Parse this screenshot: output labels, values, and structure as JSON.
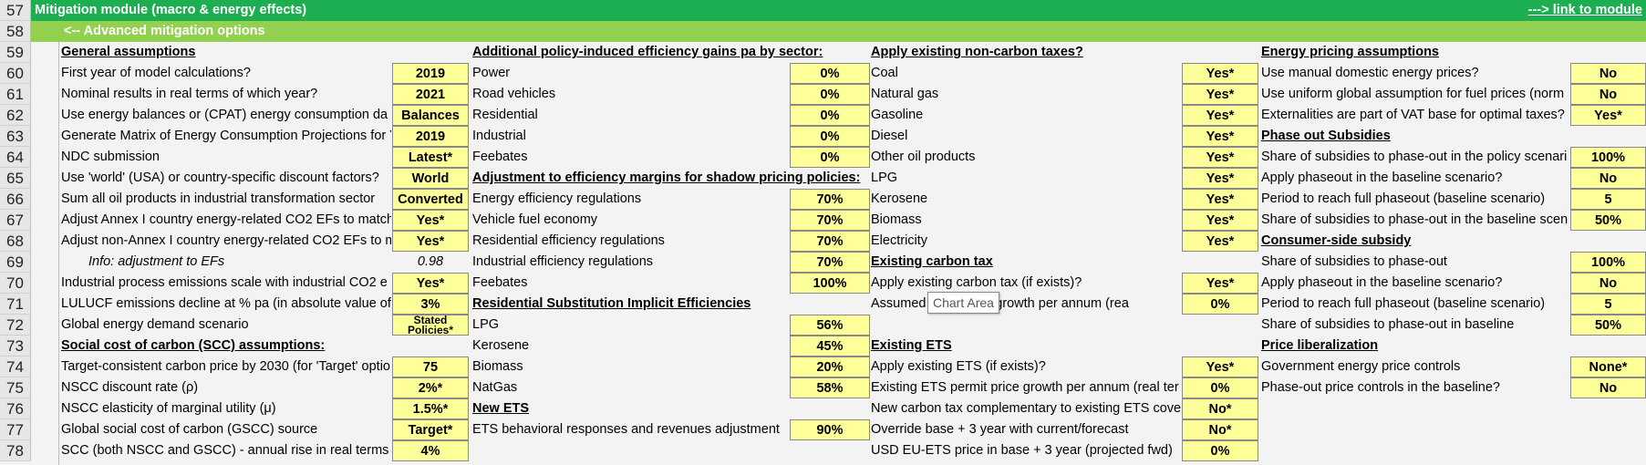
{
  "rows": [
    "57",
    "58",
    "59",
    "60",
    "61",
    "62",
    "63",
    "64",
    "65",
    "66",
    "67",
    "68",
    "69",
    "70",
    "71",
    "72",
    "73",
    "74",
    "75",
    "76",
    "77",
    "78"
  ],
  "banner": {
    "title": "Mitigation module (macro & energy effects)",
    "link": "---> link to module",
    "subtitle": "<-- Advanced mitigation options"
  },
  "col1": {
    "header": "General assumptions",
    "items": [
      {
        "label": "First year of model calculations?",
        "value": "2019"
      },
      {
        "label": "Nominal results in real terms of which year?",
        "value": "2021"
      },
      {
        "label": "Use energy balances or (CPAT) energy consumption da",
        "value": "Balances"
      },
      {
        "label": "Generate Matrix of Energy Consumption Projections for Y",
        "value": "2019"
      },
      {
        "label": "NDC submission",
        "value": "Latest*"
      },
      {
        "label": "Use 'world' (USA) or country-specific discount factors?",
        "value": "World"
      },
      {
        "label": "Sum all oil products in industrial transformation sector",
        "value": "Converted"
      },
      {
        "label": "Adjust Annex I country energy-related CO2 EFs to match",
        "value": "Yes*"
      },
      {
        "label": "Adjust non-Annex I country energy-related CO2 EFs to m",
        "value": "Yes*"
      },
      {
        "label": "Info: adjustment to EFs",
        "value": "0.98",
        "info": true
      },
      {
        "label": "Industrial process emissions scale with industrial CO2 e",
        "value": "Yes*"
      },
      {
        "label": "LULUCF emissions decline at % pa (in absolute value of",
        "value": "3%"
      },
      {
        "label": "Global energy demand scenario",
        "value": "Stated Policies*"
      }
    ],
    "header2": "Social cost of carbon (SCC) assumptions:",
    "items2": [
      {
        "label": "Target-consistent carbon price by 2030 (for 'Target' optio",
        "value": "75"
      },
      {
        "label": "NSCC discount rate (ρ)",
        "value": "2%*"
      },
      {
        "label": "NSCC elasticity of marginal utility (μ)",
        "value": "1.5%*"
      },
      {
        "label": "Global social cost of carbon (GSCC) source",
        "value": "Target*"
      },
      {
        "label": "SCC (both NSCC and GSCC) - annual rise in real terms",
        "value": "4%"
      }
    ]
  },
  "col2": {
    "header": "Additional policy-induced efficiency gains pa by sector:",
    "items": [
      {
        "label": "Power",
        "value": "0%"
      },
      {
        "label": "Road vehicles",
        "value": "0%"
      },
      {
        "label": "Residential",
        "value": "0%"
      },
      {
        "label": "Industrial",
        "value": "0%"
      },
      {
        "label": "Feebates",
        "value": "0%"
      }
    ],
    "header2": "Adjustment to efficiency margins for shadow pricing policies:",
    "items2": [
      {
        "label": "Energy efficiency regulations",
        "value": "70%"
      },
      {
        "label": "Vehicle fuel economy",
        "value": "70%"
      },
      {
        "label": "Residential efficiency regulations",
        "value": "70%"
      },
      {
        "label": "Industrial efficiency regulations",
        "value": "70%"
      },
      {
        "label": "Feebates",
        "value": "100%"
      }
    ],
    "header3": "Residential Substitution Implicit Efficiencies",
    "items3": [
      {
        "label": "LPG",
        "value": "56%"
      },
      {
        "label": "Kerosene",
        "value": "45%"
      },
      {
        "label": "Biomass",
        "value": "20%"
      },
      {
        "label": "NatGas",
        "value": "58%"
      }
    ],
    "header4": "New ETS",
    "items4": [
      {
        "label": "ETS behavioral responses and revenues adjustment",
        "value": "90%"
      }
    ]
  },
  "col3": {
    "header": "Apply existing non-carbon taxes?",
    "items": [
      {
        "label": "Coal",
        "value": "Yes*"
      },
      {
        "label": "Natural gas",
        "value": "Yes*"
      },
      {
        "label": "Gasoline",
        "value": "Yes*"
      },
      {
        "label": "Diesel",
        "value": "Yes*"
      },
      {
        "label": "Other oil products",
        "value": "Yes*"
      },
      {
        "label": "LPG",
        "value": "Yes*"
      },
      {
        "label": "Kerosene",
        "value": "Yes*"
      },
      {
        "label": "Biomass",
        "value": "Yes*"
      },
      {
        "label": "Electricity",
        "value": "Yes*"
      }
    ],
    "header2": "Existing carbon tax",
    "items2": [
      {
        "label": "Apply existing carbon tax (if exists)?",
        "value": "Yes*"
      },
      {
        "label": "Assumed carbon tax growth per annum (rea",
        "value": "0%"
      }
    ],
    "header3": "Existing ETS",
    "items3": [
      {
        "label": "Apply existing ETS (if exists)?",
        "value": "Yes*"
      },
      {
        "label": "Existing ETS permit price growth per annum (real ter",
        "value": "0%"
      },
      {
        "label": "New carbon tax complementary to existing ETS cove",
        "value": "No*"
      },
      {
        "label": "Override base + 3 year with current/forecast",
        "value": "No*"
      },
      {
        "label": "USD EU-ETS price in base + 3 year (projected fwd)",
        "value": "0%"
      }
    ]
  },
  "col4": {
    "header": "Energy pricing assumptions",
    "items": [
      {
        "label": "Use manual domestic energy prices?",
        "value": "No"
      },
      {
        "label": "Use uniform global assumption for fuel prices (norm",
        "value": "No"
      },
      {
        "label": "Externalities are part of VAT base for optimal taxes?",
        "value": "Yes*"
      }
    ],
    "header2": "Phase out Subsidies",
    "items2": [
      {
        "label": "Share of subsidies to phase-out in the policy scenari",
        "value": "100%"
      },
      {
        "label": "Apply phaseout in the baseline scenario?",
        "value": "No"
      },
      {
        "label": "Period to reach full phaseout (baseline scenario)",
        "value": "5"
      },
      {
        "label": "Share of subsidies to phase-out in the baseline scen",
        "value": "50%"
      }
    ],
    "header3": "Consumer-side subsidy",
    "items3": [
      {
        "label": "Share of subsidies to phase-out",
        "value": "100%"
      },
      {
        "label": "Apply phaseout in the baseline scenario?",
        "value": "No"
      },
      {
        "label": "Period to reach full phaseout (baseline scenario)",
        "value": "5"
      },
      {
        "label": "Share of subsidies to phase-out in baseline",
        "value": "50%"
      }
    ],
    "header4": "Price liberalization",
    "items4": [
      {
        "label": "Government energy price controls",
        "value": "None*"
      },
      {
        "label": "Phase-out price controls in the baseline?",
        "value": "No"
      }
    ]
  },
  "tooltip": "Chart Area"
}
